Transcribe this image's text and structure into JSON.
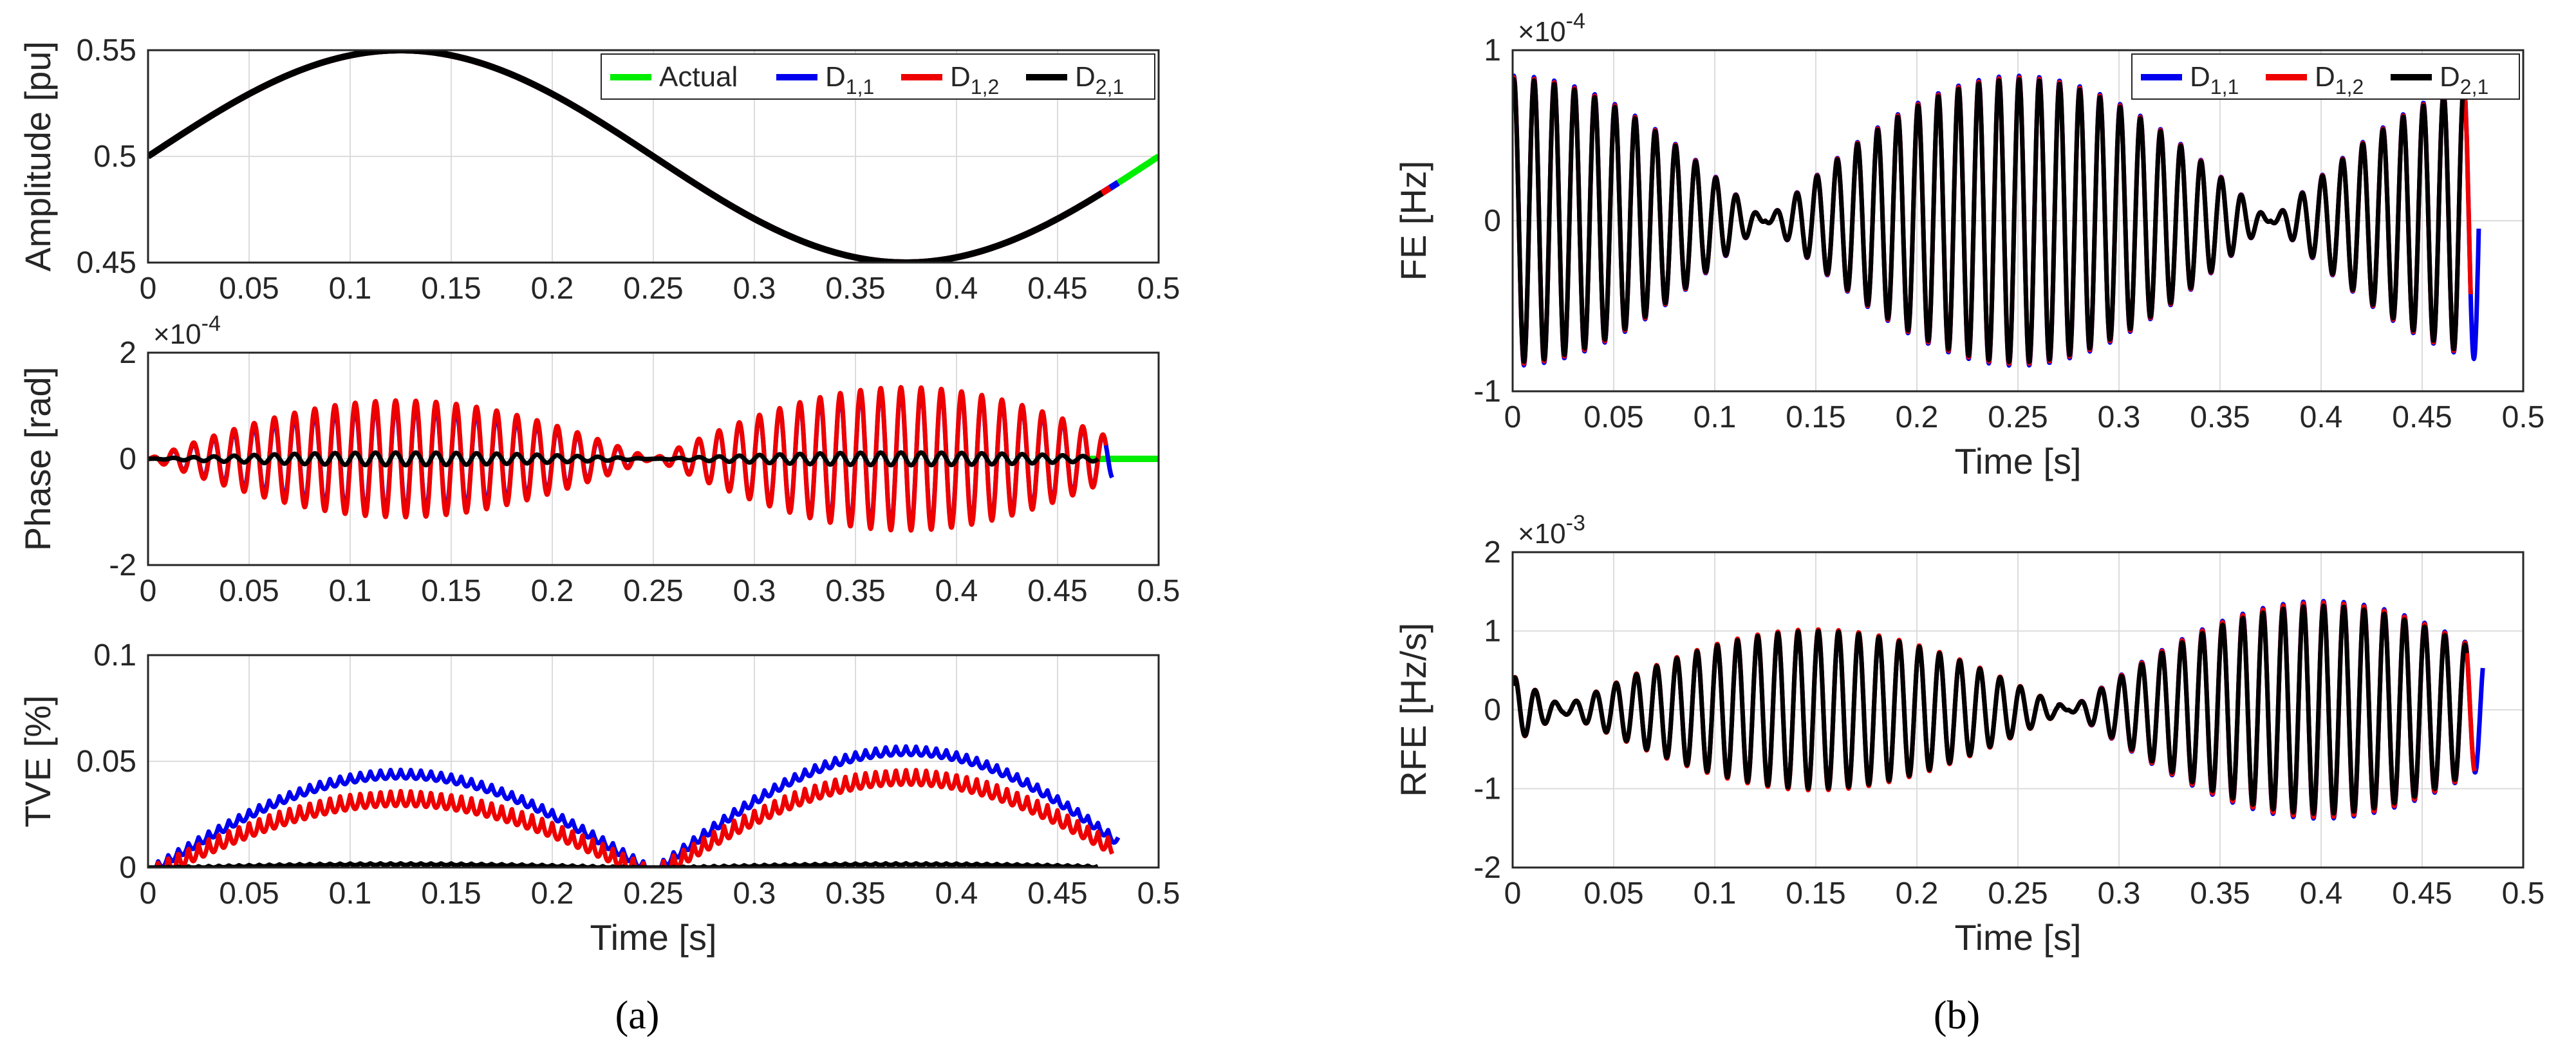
{
  "colors": {
    "Actual": "#00ee00",
    "D11": "#0000ee",
    "D12": "#ee0000",
    "D21": "#000000"
  },
  "panel_labels": [
    "(a)",
    "(b)"
  ],
  "chart_data": [
    {
      "id": "amplitude",
      "type": "line",
      "panel": "a",
      "title": "",
      "xlabel": "",
      "ylabel": "Amplitude [pu]",
      "xlim": [
        0,
        0.5
      ],
      "ylim": [
        0.45,
        0.55
      ],
      "xticks": [
        0,
        0.05,
        0.1,
        0.15,
        0.2,
        0.25,
        0.3,
        0.35,
        0.4,
        0.45,
        0.5
      ],
      "xtick_labels": [
        "0",
        "0.05",
        "0.1",
        "0.15",
        "0.2",
        "0.25",
        "0.3",
        "0.35",
        "0.4",
        "0.45",
        "0.5"
      ],
      "yticks": [
        0.45,
        0.5,
        0.55
      ],
      "ytick_labels": [
        "0.45",
        "0.5",
        "0.55"
      ],
      "grid": true,
      "legend": {
        "placement": "top-right",
        "entries": [
          {
            "main": "Actual",
            "sub": "",
            "color_key": "Actual"
          },
          {
            "main": "D",
            "sub": "1,1",
            "color_key": "D11"
          },
          {
            "main": "D",
            "sub": "1,2",
            "color_key": "D12"
          },
          {
            "main": "D",
            "sub": "2,1",
            "color_key": "D21"
          }
        ]
      },
      "series": [
        {
          "name": "Actual",
          "color_key": "Actual",
          "model": {
            "kind": "sine",
            "offset": 0.5,
            "amp": 0.05,
            "freq": 2,
            "x0": 0,
            "x1": 0.5
          }
        },
        {
          "name": "D1,1",
          "color_key": "D11",
          "model": {
            "kind": "sine",
            "offset": 0.5,
            "amp": 0.05,
            "freq": 2,
            "x0": 0,
            "x1": 0.48
          }
        },
        {
          "name": "D1,2",
          "color_key": "D12",
          "model": {
            "kind": "sine",
            "offset": 0.5,
            "amp": 0.05,
            "freq": 2,
            "x0": 0,
            "x1": 0.476
          }
        },
        {
          "name": "D2,1",
          "color_key": "D21",
          "model": {
            "kind": "sine",
            "offset": 0.5,
            "amp": 0.05,
            "freq": 2,
            "x0": 0,
            "x1": 0.472
          }
        }
      ]
    },
    {
      "id": "phase",
      "type": "line",
      "panel": "a",
      "title": "",
      "xlabel": "",
      "ylabel": "Phase [rad]",
      "exponent_label": "×10",
      "exponent_power": "-4",
      "xlim": [
        0,
        0.5
      ],
      "ylim": [
        -2,
        2
      ],
      "xticks": [
        0,
        0.05,
        0.1,
        0.15,
        0.2,
        0.25,
        0.3,
        0.35,
        0.4,
        0.45,
        0.5
      ],
      "xtick_labels": [
        "0",
        "0.05",
        "0.1",
        "0.15",
        "0.2",
        "0.25",
        "0.3",
        "0.35",
        "0.4",
        "0.45",
        "0.5"
      ],
      "yticks": [
        -2,
        0,
        2
      ],
      "ytick_labels": [
        "-2",
        "0",
        "2"
      ],
      "grid": true,
      "series": [
        {
          "name": "Actual",
          "color_key": "Actual",
          "model": {
            "kind": "const",
            "value": 0,
            "x0": 0.465,
            "x1": 0.5
          }
        },
        {
          "name": "D1,1",
          "color_key": "D11",
          "model": {
            "kind": "beat",
            "a1": 1.0,
            "a2": 1.3,
            "envfreq": 2,
            "osc": 100,
            "x0": 0,
            "x1": 0.477
          }
        },
        {
          "name": "D1,2",
          "color_key": "D12",
          "model": {
            "kind": "beat",
            "a1": 1.1,
            "a2": 1.35,
            "envfreq": 2,
            "osc": 100,
            "x0": 0,
            "x1": 0.474
          }
        },
        {
          "name": "D2,1",
          "color_key": "D21",
          "model": {
            "kind": "beat",
            "a1": 0.12,
            "a2": 0.12,
            "envfreq": 2,
            "osc": 100,
            "x0": 0,
            "x1": 0.47
          }
        }
      ]
    },
    {
      "id": "tve",
      "type": "line",
      "panel": "a",
      "title": "",
      "xlabel": "Time [s]",
      "ylabel": "TVE [%]",
      "xlim": [
        0,
        0.5
      ],
      "ylim": [
        0,
        0.1
      ],
      "xticks": [
        0,
        0.05,
        0.1,
        0.15,
        0.2,
        0.25,
        0.3,
        0.35,
        0.4,
        0.45,
        0.5
      ],
      "xtick_labels": [
        "0",
        "0.05",
        "0.1",
        "0.15",
        "0.2",
        "0.25",
        "0.3",
        "0.35",
        "0.4",
        "0.45",
        "0.5"
      ],
      "yticks": [
        0,
        0.05,
        0.1
      ],
      "ytick_labels": [
        "0",
        "0.05",
        "0.1"
      ],
      "grid": true,
      "series": [
        {
          "name": "D1,1",
          "color_key": "D11",
          "model": {
            "kind": "hump",
            "a1": 0.046,
            "a2": 0.057,
            "ripple": 0.004,
            "osc": 100,
            "x0": 0,
            "x1": 0.48
          }
        },
        {
          "name": "D1,2",
          "color_key": "D12",
          "model": {
            "kind": "hump",
            "a1": 0.036,
            "a2": 0.046,
            "ripple": 0.007,
            "osc": 100,
            "x0": 0,
            "x1": 0.477
          }
        },
        {
          "name": "D2,1",
          "color_key": "D21",
          "model": {
            "kind": "hump",
            "a1": 0.002,
            "a2": 0.002,
            "ripple": 0.0008,
            "osc": 100,
            "x0": 0,
            "x1": 0.47
          }
        }
      ]
    },
    {
      "id": "fe",
      "type": "line",
      "panel": "b",
      "title": "",
      "xlabel": "Time [s]",
      "ylabel": "FE [Hz]",
      "exponent_label": "×10",
      "exponent_power": "-4",
      "xlim": [
        0,
        0.5
      ],
      "ylim": [
        -1,
        1
      ],
      "xticks": [
        0,
        0.05,
        0.1,
        0.15,
        0.2,
        0.25,
        0.3,
        0.35,
        0.4,
        0.45,
        0.5
      ],
      "xtick_labels": [
        "0",
        "0.05",
        "0.1",
        "0.15",
        "0.2",
        "0.25",
        "0.3",
        "0.35",
        "0.4",
        "0.45",
        "0.5"
      ],
      "yticks": [
        -1,
        0,
        1
      ],
      "ytick_labels": [
        "-1",
        "0",
        "1"
      ],
      "grid": true,
      "legend": {
        "placement": "top-right",
        "entries": [
          {
            "main": "D",
            "sub": "1,1",
            "color_key": "D11"
          },
          {
            "main": "D",
            "sub": "1,2",
            "color_key": "D12"
          },
          {
            "main": "D",
            "sub": "2,1",
            "color_key": "D21"
          }
        ]
      },
      "series": [
        {
          "name": "D1,1",
          "color_key": "D11",
          "model": {
            "kind": "beatcos",
            "amp": 0.85,
            "envfreq": 4,
            "osc": 100,
            "x0": 0,
            "x1": 0.478
          }
        },
        {
          "name": "D1,2",
          "color_key": "D12",
          "model": {
            "kind": "beatcos",
            "amp": 0.84,
            "envfreq": 4,
            "osc": 100,
            "x0": 0,
            "x1": 0.474
          }
        },
        {
          "name": "D2,1",
          "color_key": "D21",
          "model": {
            "kind": "beatcos",
            "amp": 0.83,
            "envfreq": 4,
            "osc": 100,
            "x0": 0,
            "x1": 0.47
          }
        }
      ]
    },
    {
      "id": "rfe",
      "type": "line",
      "panel": "b",
      "title": "",
      "xlabel": "Time [s]",
      "ylabel": "RFE [Hz/s]",
      "exponent_label": "×10",
      "exponent_power": "-3",
      "xlim": [
        0,
        0.5
      ],
      "ylim": [
        -2,
        2
      ],
      "xticks": [
        0,
        0.05,
        0.1,
        0.15,
        0.2,
        0.25,
        0.3,
        0.35,
        0.4,
        0.45,
        0.5
      ],
      "xtick_labels": [
        "0",
        "0.05",
        "0.1",
        "0.15",
        "0.2",
        "0.25",
        "0.3",
        "0.35",
        "0.4",
        "0.45",
        "0.5"
      ],
      "yticks": [
        -2,
        -1,
        0,
        1,
        2
      ],
      "ytick_labels": [
        "-2",
        "-1",
        "0",
        "1",
        "2"
      ],
      "grid": true,
      "series": [
        {
          "name": "D1,1",
          "color_key": "D11",
          "model": {
            "kind": "beatsin",
            "a1": 1.0,
            "a2": 1.38,
            "osc": 100,
            "x0": 0,
            "x1": 0.48
          }
        },
        {
          "name": "D1,2",
          "color_key": "D12",
          "model": {
            "kind": "beatsin",
            "a1": 1.02,
            "a2": 1.36,
            "osc": 100,
            "x0": 0,
            "x1": 0.476
          }
        },
        {
          "name": "D2,1",
          "color_key": "D21",
          "model": {
            "kind": "beatsin",
            "a1": 1.0,
            "a2": 1.32,
            "osc": 100,
            "x0": 0,
            "x1": 0.472
          }
        }
      ]
    }
  ]
}
